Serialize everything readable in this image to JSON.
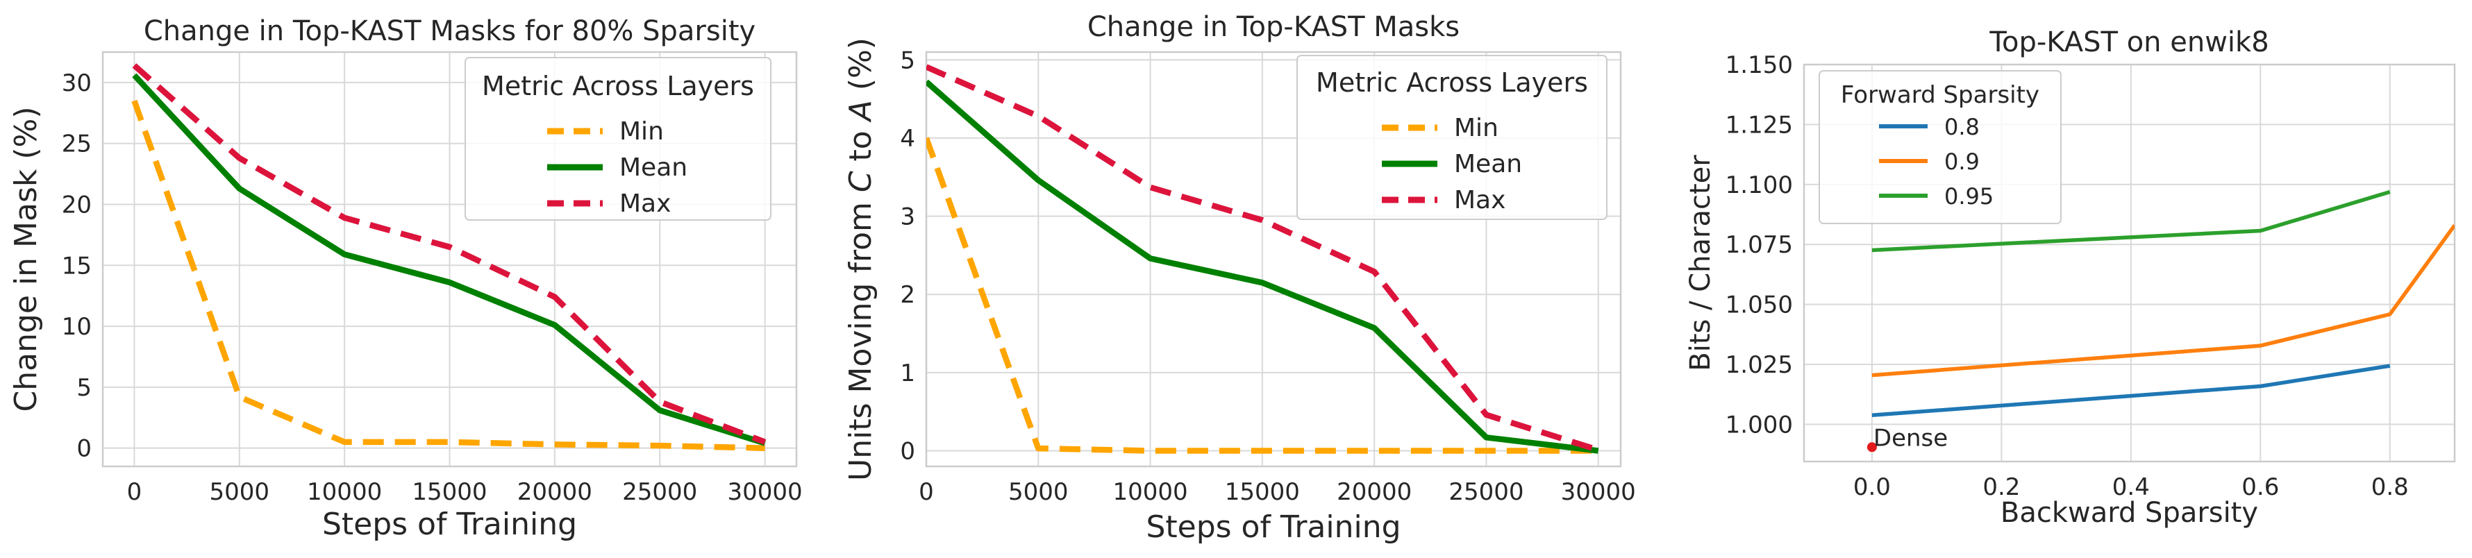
{
  "chart_data": [
    {
      "type": "line",
      "title": "Change in Top-KAST Masks for 80% Sparsity",
      "xlabel": "Steps of Training",
      "ylabel": "Change in Mask (%)",
      "xlim": [
        -1500,
        31500
      ],
      "ylim": [
        -1.5,
        32.5
      ],
      "xticks": [
        0,
        5000,
        10000,
        15000,
        20000,
        25000,
        30000
      ],
      "xtick_labels": [
        "0",
        "5000",
        "10000",
        "15000",
        "20000",
        "25000",
        "30000"
      ],
      "yticks": [
        0,
        5,
        10,
        15,
        20,
        25,
        30
      ],
      "ytick_labels": [
        "0",
        "5",
        "10",
        "15",
        "20",
        "25",
        "30"
      ],
      "grid": true,
      "legend": {
        "title": "Metric Across Layers",
        "placement": "top-right"
      },
      "x": [
        0,
        5000,
        10000,
        15000,
        20000,
        25000,
        30000
      ],
      "series": [
        {
          "name": "Min",
          "color": "#ffa500",
          "dash": "dashed",
          "values": [
            28.5,
            4.2,
            0.5,
            0.5,
            0.3,
            0.2,
            0.0
          ]
        },
        {
          "name": "Mean",
          "color": "#008000",
          "dash": "solid",
          "values": [
            30.6,
            21.3,
            15.9,
            13.6,
            10.1,
            3.1,
            0.4
          ]
        },
        {
          "name": "Max",
          "color": "#dc143c",
          "dash": "dashed",
          "values": [
            31.4,
            23.8,
            18.9,
            16.5,
            12.4,
            3.8,
            0.5
          ]
        }
      ]
    },
    {
      "type": "line",
      "title": "Change in Top-KAST Masks",
      "xlabel": "Steps of Training",
      "ylabel": "Units Moving from C to A (%)",
      "ylabel_parts": [
        "Units Moving from ",
        "C",
        " to ",
        "A",
        " (%)"
      ],
      "xlim": [
        0,
        31000
      ],
      "ylim": [
        -0.2,
        5.1
      ],
      "xticks": [
        0,
        5000,
        10000,
        15000,
        20000,
        25000,
        30000
      ],
      "xtick_labels": [
        "0",
        "5000",
        "10000",
        "15000",
        "20000",
        "25000",
        "30000"
      ],
      "yticks": [
        0,
        1,
        2,
        3,
        4,
        5
      ],
      "ytick_labels": [
        "0",
        "1",
        "2",
        "3",
        "4",
        "5"
      ],
      "grid": true,
      "legend": {
        "title": "Metric Across Layers",
        "placement": "top-right"
      },
      "x": [
        0,
        5000,
        10000,
        15000,
        20000,
        25000,
        30000
      ],
      "series": [
        {
          "name": "Min",
          "color": "#ffa500",
          "dash": "dashed",
          "values": [
            4.0,
            0.03,
            0.0,
            0.0,
            0.0,
            0.0,
            0.0
          ]
        },
        {
          "name": "Mean",
          "color": "#008000",
          "dash": "solid",
          "values": [
            4.72,
            3.46,
            2.46,
            2.15,
            1.57,
            0.17,
            0.0
          ]
        },
        {
          "name": "Max",
          "color": "#dc143c",
          "dash": "dashed",
          "values": [
            4.91,
            4.28,
            3.37,
            2.95,
            2.29,
            0.46,
            0.01
          ]
        }
      ]
    },
    {
      "type": "line",
      "title": "Top-KAST on enwik8",
      "xlabel": "Backward Sparsity",
      "ylabel": "Bits / Character",
      "xlim": [
        -0.105,
        0.9
      ],
      "ylim": [
        0.9845,
        1.15
      ],
      "xticks": [
        0.0,
        0.2,
        0.4,
        0.6,
        0.8
      ],
      "xtick_labels": [
        "0.0",
        "0.2",
        "0.4",
        "0.6",
        "0.8"
      ],
      "yticks": [
        1.0,
        1.025,
        1.05,
        1.075,
        1.1,
        1.125,
        1.15
      ],
      "ytick_labels": [
        "1.000",
        "1.025",
        "1.050",
        "1.075",
        "1.100",
        "1.125",
        "1.150"
      ],
      "grid": true,
      "legend": {
        "title": "Forward Sparsity",
        "placement": "top-left"
      },
      "series": [
        {
          "name": "0.8",
          "color": "#1f77b4",
          "x": [
            0.0,
            0.6,
            0.8
          ],
          "values": [
            1.0038,
            1.0159,
            1.0244
          ]
        },
        {
          "name": "0.9",
          "color": "#ff7f0e",
          "x": [
            0.0,
            0.6,
            0.8,
            0.9
          ],
          "values": [
            1.0205,
            1.0328,
            1.0459,
            1.083
          ]
        },
        {
          "name": "0.95",
          "color": "#2ca02c",
          "x": [
            0.0,
            0.6,
            0.8
          ],
          "values": [
            1.0726,
            1.0807,
            1.0969
          ]
        }
      ],
      "annotations": [
        {
          "text": "Dense",
          "x": 0.0,
          "y": 0.9905,
          "color": "#e31a1c"
        }
      ]
    }
  ]
}
